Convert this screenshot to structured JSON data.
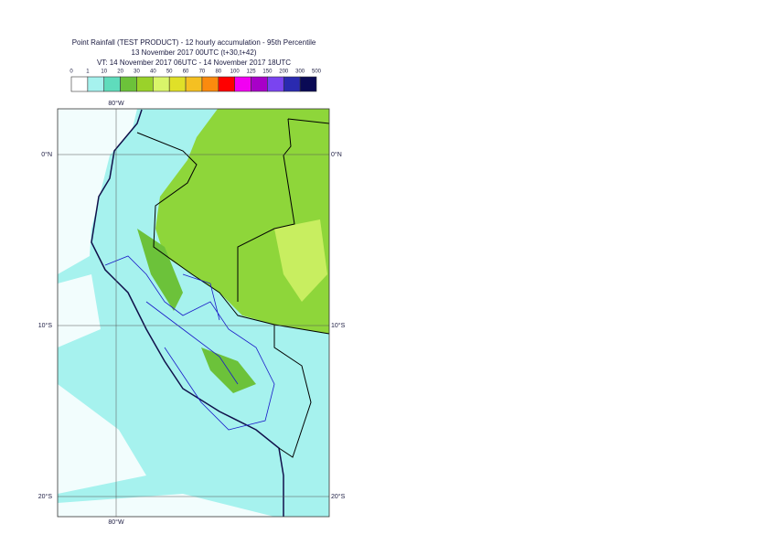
{
  "header": {
    "lines": [
      "Point Rainfall (TEST PRODUCT) - 12 hourly accumulation - 95th Percentile",
      "13 November 2017 00UTC (t+30,t+42)",
      "VT: 14 November 2017 06UTC - 14 November 2017 18UTC"
    ]
  },
  "legend": {
    "ticks": [
      0,
      1,
      10,
      20,
      30,
      40,
      50,
      60,
      70,
      80,
      100,
      125,
      150,
      200,
      300,
      500
    ],
    "colors": [
      "#ffffff",
      "#a6f2ee",
      "#5fdcbc",
      "#6cc23a",
      "#9ad22a",
      "#d9f56a",
      "#e0e028",
      "#f5c022",
      "#fb8a0e",
      "#ff0000",
      "#f200f2",
      "#a800c8",
      "#7a44f0",
      "#2a2ab0",
      "#0a0a55"
    ]
  },
  "map": {
    "labels": [
      "80°W",
      "80°W",
      "0°N",
      "0°N",
      "10°S",
      "10°S",
      "20°S",
      "20°S"
    ]
  }
}
